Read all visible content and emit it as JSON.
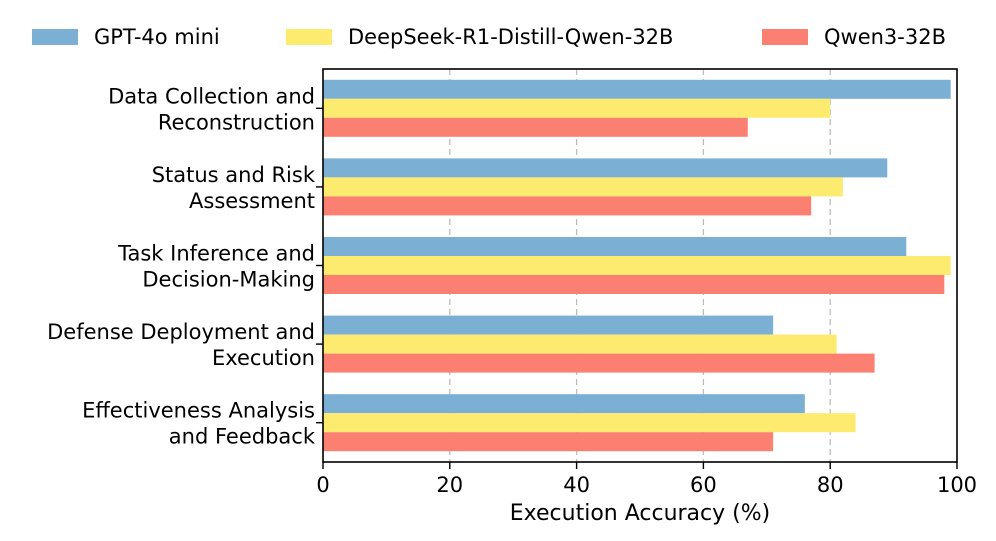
{
  "chart_data": {
    "type": "bar",
    "orientation": "horizontal",
    "categories": [
      [
        "Data Collection and",
        "Reconstruction"
      ],
      [
        "Status and Risk",
        "Assessment"
      ],
      [
        "Task Inference and",
        "Decision-Making"
      ],
      [
        "Defense Deployment and",
        "Execution"
      ],
      [
        "Effectiveness Analysis",
        "and Feedback"
      ]
    ],
    "series": [
      {
        "name": "GPT-4o mini",
        "color": "#7bafd4",
        "values": [
          99,
          89,
          92,
          71,
          76
        ]
      },
      {
        "name": "DeepSeek-R1-Distill-Qwen-32B",
        "color": "#fdeb6f",
        "values": [
          80,
          82,
          99,
          81,
          84
        ]
      },
      {
        "name": "Qwen3-32B",
        "color": "#fb8072",
        "values": [
          67,
          77,
          98,
          87,
          71
        ]
      }
    ],
    "xlabel": "Execution Accuracy (%)",
    "ylabel": "",
    "xlim": [
      0,
      100
    ],
    "xticks": [
      0,
      20,
      40,
      60,
      80,
      100
    ],
    "grid": "vertical dashed",
    "legend_position": "top"
  }
}
